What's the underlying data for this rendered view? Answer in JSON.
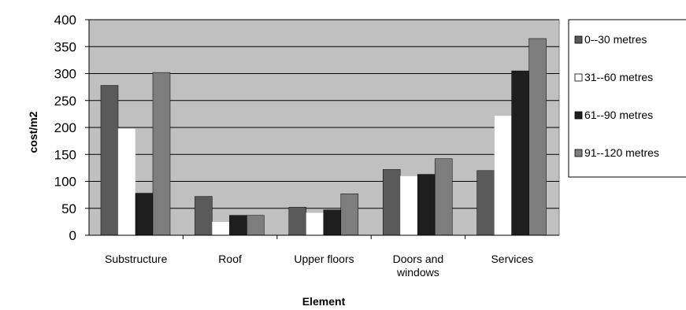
{
  "chart_data": {
    "type": "bar",
    "title": "",
    "xlabel": "Element",
    "ylabel": "cost/m2",
    "ylim": [
      0,
      400
    ],
    "yticks": [
      0,
      50,
      100,
      150,
      200,
      250,
      300,
      350,
      400
    ],
    "grid": true,
    "legend_position": "right",
    "categories": [
      [
        "Substructure"
      ],
      [
        "Roof"
      ],
      [
        "Upper floors"
      ],
      [
        "Doors and",
        "windows"
      ],
      [
        "Services"
      ]
    ],
    "series": [
      {
        "name": "0--30 metres",
        "color": "#5a5a5a",
        "values": [
          278,
          72,
          52,
          122,
          120
        ]
      },
      {
        "name": "31--60 metres",
        "color": "#ffffff",
        "values": [
          198,
          25,
          42,
          110,
          222
        ]
      },
      {
        "name": "61--90 metres",
        "color": "#1e1e1e",
        "values": [
          78,
          37,
          47,
          113,
          305
        ]
      },
      {
        "name": "91--120 metres",
        "color": "#7d7d7d",
        "values": [
          302,
          37,
          77,
          142,
          365
        ]
      }
    ],
    "plot_background": "#c0c0c0"
  }
}
